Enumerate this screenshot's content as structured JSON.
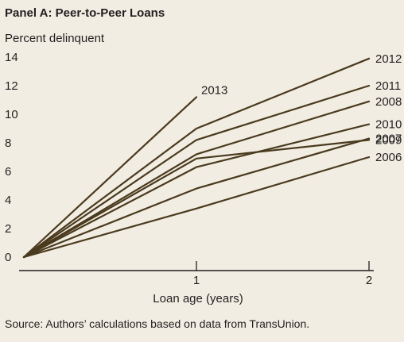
{
  "panel_title": "Panel A: Peer-to-Peer Loans",
  "source_note": "Source: Authors’ calculations based on data from TransUnion.",
  "colors": {
    "background": "#f2ede2",
    "line": "#4a3a1e",
    "text": "#231f20"
  },
  "chart_data": {
    "type": "line",
    "title": "Panel A: Peer-to-Peer Loans",
    "ylabel": "Percent delinquent",
    "xlabel": "Loan age (years)",
    "ylim": [
      0,
      14
    ],
    "xlim": [
      0,
      2
    ],
    "yticks": [
      0,
      2,
      4,
      6,
      8,
      10,
      12,
      14
    ],
    "xticks": [
      1,
      2
    ],
    "grid": false,
    "legend": "direct labels at line ends",
    "series": [
      {
        "name": "2012",
        "x": [
          0,
          1,
          2
        ],
        "y": [
          0,
          9.0,
          13.9
        ]
      },
      {
        "name": "2011",
        "x": [
          0,
          1,
          2
        ],
        "y": [
          0,
          8.2,
          12.0
        ]
      },
      {
        "name": "2008",
        "x": [
          0,
          1,
          2
        ],
        "y": [
          0,
          7.2,
          10.9
        ]
      },
      {
        "name": "2010",
        "x": [
          0,
          1,
          2
        ],
        "y": [
          0,
          6.3,
          9.3
        ]
      },
      {
        "name": "2009",
        "x": [
          0,
          1,
          2
        ],
        "y": [
          0,
          6.9,
          8.2
        ]
      },
      {
        "name": "2007",
        "x": [
          0,
          1,
          2
        ],
        "y": [
          0,
          4.8,
          8.3
        ]
      },
      {
        "name": "2006",
        "x": [
          0,
          1,
          2
        ],
        "y": [
          0,
          3.4,
          7.0
        ]
      },
      {
        "name": "2013",
        "x": [
          0,
          1
        ],
        "y": [
          0,
          11.2
        ]
      }
    ]
  }
}
